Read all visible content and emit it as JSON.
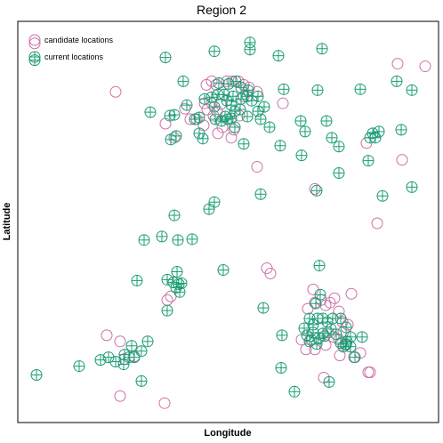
{
  "chart_data": {
    "type": "scatter",
    "title": "Region 2",
    "xlabel": "Longitude",
    "ylabel": "Latitude",
    "axis_ticks": false,
    "xlim": [
      20,
      493
    ],
    "ylim": [
      20,
      475
    ],
    "legend": {
      "placement": "top-left"
    },
    "series": [
      {
        "name": "candidate locations",
        "marker": "open-circle",
        "color": "#cc6fa5",
        "points": [
          [
            39,
            45
          ],
          [
            130,
            100
          ],
          [
            447,
            68
          ],
          [
            478,
            71
          ],
          [
            232,
            92
          ],
          [
            238,
            88
          ],
          [
            243,
            92
          ],
          [
            255,
            88
          ],
          [
            261,
            88
          ],
          [
            268,
            88
          ],
          [
            274,
            92
          ],
          [
            280,
            95
          ],
          [
            230,
            113
          ],
          [
            233,
            120
          ],
          [
            238,
            113
          ],
          [
            240,
            127
          ],
          [
            244,
            122
          ],
          [
            248,
            114
          ],
          [
            208,
            119
          ],
          [
            214,
            131
          ],
          [
            221,
            131
          ],
          [
            229,
            138
          ],
          [
            250,
            140
          ],
          [
            263,
            143
          ],
          [
            269,
            127
          ],
          [
            186,
            136
          ],
          [
            318,
            113
          ],
          [
            274,
            105
          ],
          [
            289,
            100
          ],
          [
            196,
            152
          ],
          [
            245,
            147
          ],
          [
            260,
            152
          ],
          [
            354,
            210
          ],
          [
            289,
            185
          ],
          [
            412,
            158
          ],
          [
            452,
            177
          ],
          [
            424,
            249
          ],
          [
            300,
            300
          ],
          [
            304,
            306
          ],
          [
            352,
            324
          ],
          [
            395,
            329
          ],
          [
            366,
            342
          ],
          [
            376,
            334
          ],
          [
            346,
            346
          ],
          [
            354,
            339
          ],
          [
            361,
            336
          ],
          [
            371,
            339
          ],
          [
            381,
            349
          ],
          [
            385,
            361
          ],
          [
            391,
            364
          ],
          [
            386,
            372
          ],
          [
            381,
            381
          ],
          [
            389,
            387
          ],
          [
            382,
            399
          ],
          [
            398,
            401
          ],
          [
            405,
            396
          ],
          [
            369,
            373
          ],
          [
            375,
            378
          ],
          [
            366,
            387
          ],
          [
            354,
            392
          ],
          [
            344,
            392
          ],
          [
            339,
            381
          ],
          [
            350,
            381
          ],
          [
            364,
            424
          ],
          [
            414,
            418
          ],
          [
            416,
            418
          ],
          [
            120,
            376
          ],
          [
            135,
            383
          ],
          [
            140,
            403
          ],
          [
            151,
            400
          ],
          [
            135,
            445
          ],
          [
            185,
            453
          ],
          [
            188,
            336
          ],
          [
            192,
            332
          ]
        ]
      },
      {
        "name": "current locations",
        "marker": "circled-plus",
        "color": "#1a9c73",
        "points": [
          [
            39,
            64
          ],
          [
            241,
            54
          ],
          [
            281,
            44
          ],
          [
            281,
            52
          ],
          [
            313,
            59
          ],
          [
            362,
            51
          ],
          [
            186,
            61
          ],
          [
            206,
            88
          ],
          [
            246,
            90
          ],
          [
            257,
            91
          ],
          [
            265,
            88
          ],
          [
            271,
            95
          ],
          [
            279,
            98
          ],
          [
            245,
            103
          ],
          [
            252,
            103
          ],
          [
            262,
            105
          ],
          [
            271,
            108
          ],
          [
            278,
            105
          ],
          [
            283,
            110
          ],
          [
            290,
            105
          ],
          [
            230,
            108
          ],
          [
            238,
            106
          ],
          [
            241,
            117
          ],
          [
            255,
            110
          ],
          [
            260,
            115
          ],
          [
            264,
            122
          ],
          [
            270,
            120
          ],
          [
            253,
            128
          ],
          [
            260,
            130
          ],
          [
            278,
            128
          ],
          [
            290,
            122
          ],
          [
            297,
            117
          ],
          [
            210,
            115
          ],
          [
            219,
            131
          ],
          [
            224,
            129
          ],
          [
            242,
            131
          ],
          [
            249,
            133
          ],
          [
            256,
            131
          ],
          [
            191,
            127
          ],
          [
            196,
            126
          ],
          [
            169,
            123
          ],
          [
            192,
            154
          ],
          [
            198,
            150
          ],
          [
            228,
            153
          ],
          [
            293,
            131
          ],
          [
            303,
            140
          ],
          [
            274,
            159
          ],
          [
            264,
            140
          ],
          [
            224,
            147
          ],
          [
            319,
            97
          ],
          [
            357,
            98
          ],
          [
            405,
            97
          ],
          [
            463,
            98
          ],
          [
            446,
            88
          ],
          [
            338,
            133
          ],
          [
            343,
            145
          ],
          [
            367,
            133
          ],
          [
            373,
            152
          ],
          [
            381,
            162
          ],
          [
            381,
            192
          ],
          [
            419,
            147
          ],
          [
            416,
            152
          ],
          [
            422,
            152
          ],
          [
            426,
            145
          ],
          [
            451,
            143
          ],
          [
            414,
            178
          ],
          [
            339,
            172
          ],
          [
            315,
            161
          ],
          [
            235,
            233
          ],
          [
            241,
            225
          ],
          [
            293,
            216
          ],
          [
            356,
            212
          ],
          [
            430,
            218
          ],
          [
            463,
            208
          ],
          [
            196,
            240
          ],
          [
            162,
            268
          ],
          [
            182,
            264
          ],
          [
            200,
            268
          ],
          [
            216,
            267
          ],
          [
            199,
            304
          ],
          [
            195,
            316
          ],
          [
            201,
            318
          ],
          [
            188,
            313
          ],
          [
            198,
            322
          ],
          [
            204,
            317
          ],
          [
            202,
            327
          ],
          [
            154,
            314
          ],
          [
            251,
            302
          ],
          [
            359,
            297
          ],
          [
            296,
            345
          ],
          [
            188,
            348
          ],
          [
            360,
            330
          ],
          [
            355,
            340
          ],
          [
            348,
            357
          ],
          [
            352,
            364
          ],
          [
            357,
            357
          ],
          [
            363,
            357
          ],
          [
            368,
            361
          ],
          [
            374,
            357
          ],
          [
            383,
            357
          ],
          [
            389,
            367
          ],
          [
            345,
            376
          ],
          [
            352,
            373
          ],
          [
            358,
            379
          ],
          [
            365,
            377
          ],
          [
            372,
            369
          ],
          [
            378,
            375
          ],
          [
            394,
            378
          ],
          [
            407,
            378
          ],
          [
            342,
            368
          ],
          [
            348,
            383
          ],
          [
            356,
            386
          ],
          [
            363,
            374
          ],
          [
            389,
            386
          ],
          [
            394,
            389
          ],
          [
            399,
            401
          ],
          [
            383,
            385
          ],
          [
            390,
            383
          ],
          [
            386,
            389
          ],
          [
            317,
            376
          ],
          [
            316,
            413
          ],
          [
            331,
            440
          ],
          [
            370,
            429
          ],
          [
            166,
            383
          ],
          [
            148,
            388
          ],
          [
            159,
            394
          ],
          [
            151,
            401
          ],
          [
            122,
            401
          ],
          [
            113,
            404
          ],
          [
            130,
            406
          ],
          [
            145,
            401
          ],
          [
            140,
            398
          ],
          [
            139,
            409
          ],
          [
            89,
            411
          ],
          [
            41,
            421
          ],
          [
            159,
            428
          ]
        ]
      }
    ]
  }
}
